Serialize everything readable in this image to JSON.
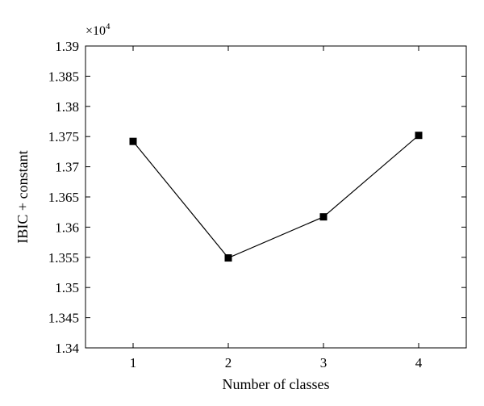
{
  "chart_data": {
    "type": "line",
    "xlabel": "Number of classes",
    "ylabel": "IBIC + constant",
    "y_multiplier": {
      "base": "×10",
      "exponent": "4"
    },
    "x_ticks": [
      "1",
      "2",
      "3",
      "4"
    ],
    "y_ticks": [
      "1.34",
      "1.345",
      "1.35",
      "1.355",
      "1.36",
      "1.365",
      "1.37",
      "1.375",
      "1.38",
      "1.385",
      "1.39"
    ],
    "xlim": [
      0.5,
      4.5
    ],
    "ylim": [
      1.34,
      1.39
    ],
    "grid": false,
    "series": [
      {
        "x": [
          1,
          2,
          3,
          4
        ],
        "y": [
          1.3742,
          1.3549,
          1.3617,
          1.3752
        ],
        "marker": "square",
        "color": "#000000"
      }
    ]
  }
}
